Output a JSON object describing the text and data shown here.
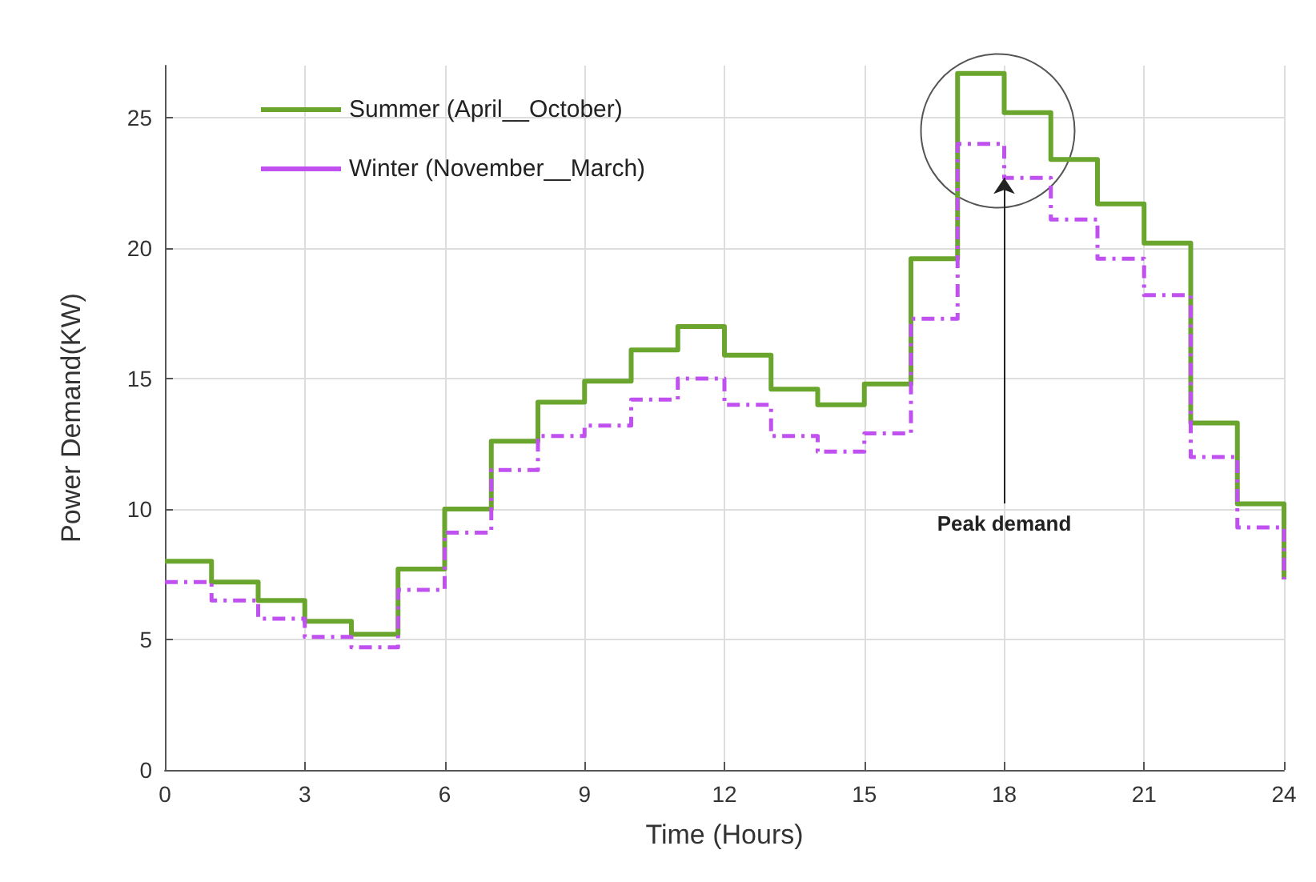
{
  "chart_data": {
    "type": "step",
    "xlabel": "Time (Hours)",
    "ylabel": "Power Demand(KW)",
    "x": [
      0,
      1,
      2,
      3,
      4,
      5,
      6,
      7,
      8,
      9,
      10,
      11,
      12,
      13,
      14,
      15,
      16,
      17,
      18,
      19,
      20,
      21,
      22,
      23,
      24
    ],
    "series": [
      {
        "name": "Summer (April__October)",
        "color": "#6aa62e",
        "line_style": "solid",
        "values": [
          8,
          7.2,
          6.5,
          5.7,
          5.2,
          7.7,
          10,
          12.6,
          14.1,
          14.9,
          16.1,
          17,
          15.9,
          14.6,
          14,
          14.8,
          19.6,
          26.7,
          25.2,
          23.4,
          21.7,
          20.2,
          13.3,
          10.2,
          7.3
        ]
      },
      {
        "name": "Winter (November__March)",
        "color": "#c050f0",
        "line_style": "dashed",
        "values": [
          7.2,
          6.5,
          5.8,
          5.1,
          4.7,
          6.9,
          9.1,
          11.5,
          12.8,
          13.2,
          14.2,
          15,
          14,
          12.8,
          12.2,
          12.9,
          17.3,
          24,
          22.7,
          21.1,
          19.6,
          18.2,
          12,
          9.3,
          7.3
        ]
      }
    ],
    "xlim": [
      0,
      24
    ],
    "xticks": [
      0,
      3,
      6,
      9,
      12,
      15,
      18,
      21,
      24
    ],
    "ylim": [
      0,
      27
    ],
    "yticks": [
      0,
      5,
      10,
      15,
      20,
      25
    ],
    "annotations": [
      {
        "text": "Peak demand",
        "x": 18,
        "y": 22.7
      }
    ],
    "grid": true,
    "legend": "top left",
    "marker": "none"
  }
}
